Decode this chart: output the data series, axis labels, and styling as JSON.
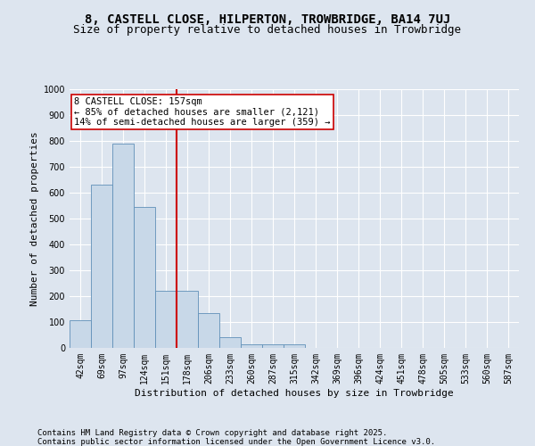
{
  "title1": "8, CASTELL CLOSE, HILPERTON, TROWBRIDGE, BA14 7UJ",
  "title2": "Size of property relative to detached houses in Trowbridge",
  "xlabel": "Distribution of detached houses by size in Trowbridge",
  "ylabel": "Number of detached properties",
  "categories": [
    "42sqm",
    "69sqm",
    "97sqm",
    "124sqm",
    "151sqm",
    "178sqm",
    "206sqm",
    "233sqm",
    "260sqm",
    "287sqm",
    "315sqm",
    "342sqm",
    "369sqm",
    "396sqm",
    "424sqm",
    "451sqm",
    "478sqm",
    "505sqm",
    "533sqm",
    "560sqm",
    "587sqm"
  ],
  "values": [
    108,
    630,
    790,
    545,
    220,
    220,
    135,
    42,
    15,
    15,
    15,
    0,
    0,
    0,
    0,
    0,
    0,
    0,
    0,
    0,
    0
  ],
  "bar_color": "#c8d8e8",
  "bar_edge_color": "#6090b8",
  "vline_x_index": 4.5,
  "vline_color": "#cc0000",
  "annotation_text": "8 CASTELL CLOSE: 157sqm\n← 85% of detached houses are smaller (2,121)\n14% of semi-detached houses are larger (359) →",
  "annotation_box_color": "#ffffff",
  "annotation_box_edge": "#cc0000",
  "ylim": [
    0,
    1000
  ],
  "yticks": [
    0,
    100,
    200,
    300,
    400,
    500,
    600,
    700,
    800,
    900,
    1000
  ],
  "footer1": "Contains HM Land Registry data © Crown copyright and database right 2025.",
  "footer2": "Contains public sector information licensed under the Open Government Licence v3.0.",
  "background_color": "#dde5ef",
  "plot_bg_color": "#dde5ef",
  "grid_color": "#ffffff",
  "title1_fontsize": 10,
  "title2_fontsize": 9,
  "axis_label_fontsize": 8,
  "tick_fontsize": 7,
  "annotation_fontsize": 7.5,
  "footer_fontsize": 6.5
}
